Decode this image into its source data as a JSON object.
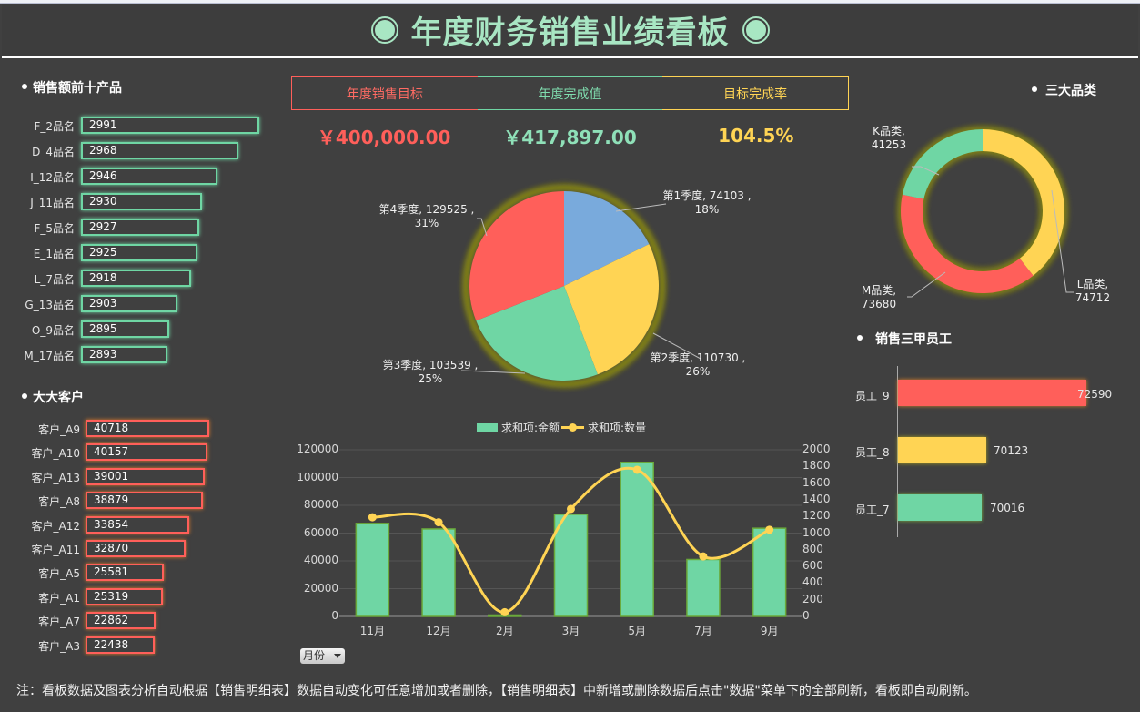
{
  "title": "年度财务销售业绩看板",
  "colors": {
    "green": "#6fd6a4",
    "red": "#ff5f5a",
    "yellow": "#ffd454",
    "blue": "#79aadc",
    "bg": "#404040",
    "title": "#a8e6c3"
  },
  "top_products": {
    "title": "销售额前十产品",
    "items": [
      {
        "label": "F_2品名",
        "value": 2991,
        "width": 196
      },
      {
        "label": "D_4品名",
        "value": 2968,
        "width": 173
      },
      {
        "label": "I_12品名",
        "value": 2946,
        "width": 150
      },
      {
        "label": "J_11品名",
        "value": 2930,
        "width": 133
      },
      {
        "label": "F_5品名",
        "value": 2927,
        "width": 130
      },
      {
        "label": "E_1品名",
        "value": 2925,
        "width": 128
      },
      {
        "label": "L_7品名",
        "value": 2918,
        "width": 121
      },
      {
        "label": "G_13品名",
        "value": 2903,
        "width": 106
      },
      {
        "label": "O_9品名",
        "value": 2895,
        "width": 97
      },
      {
        "label": "M_17品名",
        "value": 2893,
        "width": 95
      }
    ]
  },
  "top_customers": {
    "title": "大大客户",
    "items": [
      {
        "label": "客户_A9",
        "value": 40718,
        "width": 136
      },
      {
        "label": "客户_A10",
        "value": 40157,
        "width": 134
      },
      {
        "label": "客户_A13",
        "value": 39001,
        "width": 131
      },
      {
        "label": "客户_A8",
        "value": 38879,
        "width": 129
      },
      {
        "label": "客户_A12",
        "value": 33854,
        "width": 114
      },
      {
        "label": "客户_A11",
        "value": 32870,
        "width": 110
      },
      {
        "label": "客户_A5",
        "value": 25581,
        "width": 86
      },
      {
        "label": "客户_A1",
        "value": 25319,
        "width": 85
      },
      {
        "label": "客户_A7",
        "value": 22862,
        "width": 77
      },
      {
        "label": "客户_A3",
        "value": 22438,
        "width": 76
      }
    ]
  },
  "kpi": {
    "target_label": "年度销售目标",
    "actual_label": "年度完成值",
    "rate_label": "目标完成率",
    "target_value": "￥400,000.00",
    "actual_value": "￥417,897.00",
    "rate_value": "104.5%"
  },
  "quarter_pie": {
    "labels": [
      {
        "line1": "第1季度, 74103 ,",
        "line2": "18%"
      },
      {
        "line1": "第2季度, 110730 ,",
        "line2": "26%"
      },
      {
        "line1": "第3季度, 103539 ,",
        "line2": "25%"
      },
      {
        "line1": "第4季度, 129525 ,",
        "line2": "31%"
      }
    ]
  },
  "combo": {
    "legend_bar": "求和项:金额",
    "legend_line": "求和项:数量",
    "y_left": [
      "120000",
      "100000",
      "80000",
      "60000",
      "40000",
      "20000",
      "0"
    ],
    "y_right": [
      "2000",
      "1800",
      "1600",
      "1400",
      "1200",
      "1000",
      "800",
      "600",
      "400",
      "200",
      "0"
    ],
    "x": [
      "11月",
      "12月",
      "2月",
      "3月",
      "5月",
      "7月",
      "9月"
    ],
    "filter_label": "月份"
  },
  "categories": {
    "title": "三大品类",
    "items": [
      {
        "name": "K品类,",
        "value": "41253"
      },
      {
        "name": "L品类,",
        "value": "74712"
      },
      {
        "name": "M品类,",
        "value": "73680"
      }
    ]
  },
  "employees": {
    "title": "销售三甲员工",
    "items": [
      {
        "label": "员工_9",
        "value": "72590"
      },
      {
        "label": "员工_8",
        "value": "70123"
      },
      {
        "label": "员工_7",
        "value": "70016"
      }
    ]
  },
  "note": "注：看板数据及图表分析自动根据【销售明细表】数据自动变化可任意增加或者删除，【销售明细表】中新增或删除数据后点击\"数据\"菜单下的全部刷新，看板即自动刷新。",
  "chart_data": [
    {
      "type": "bar",
      "title": "销售额前十产品",
      "orientation": "horizontal",
      "categories": [
        "F_2品名",
        "D_4品名",
        "I_12品名",
        "J_11品名",
        "F_5品名",
        "E_1品名",
        "L_7品名",
        "G_13品名",
        "O_9品名",
        "M_17品名"
      ],
      "values": [
        2991,
        2968,
        2946,
        2930,
        2927,
        2925,
        2918,
        2903,
        2895,
        2893
      ]
    },
    {
      "type": "bar",
      "title": "大大客户",
      "orientation": "horizontal",
      "categories": [
        "客户_A9",
        "客户_A10",
        "客户_A13",
        "客户_A8",
        "客户_A12",
        "客户_A11",
        "客户_A5",
        "客户_A1",
        "客户_A7",
        "客户_A3"
      ],
      "values": [
        40718,
        40157,
        39001,
        38879,
        33854,
        32870,
        25581,
        25319,
        22862,
        22438
      ]
    },
    {
      "type": "pie",
      "title": "季度销售",
      "categories": [
        "第1季度",
        "第2季度",
        "第3季度",
        "第4季度"
      ],
      "values": [
        74103,
        110730,
        103539,
        129525
      ],
      "percentages": [
        18,
        26,
        25,
        31
      ]
    },
    {
      "type": "bar",
      "title": "月度金额与数量",
      "categories": [
        "11月",
        "12月",
        "2月",
        "3月",
        "5月",
        "7月",
        "9月"
      ],
      "series": [
        {
          "name": "求和项:金额",
          "type": "bar",
          "axis": "left",
          "values": [
            67000,
            63000,
            1000,
            73500,
            111000,
            41000,
            63500
          ]
        },
        {
          "name": "求和项:数量",
          "type": "line",
          "axis": "right",
          "values": [
            1190,
            1130,
            50,
            1290,
            1760,
            720,
            1040
          ]
        }
      ],
      "ylim_left": [
        0,
        120000
      ],
      "ylim_right": [
        0,
        2000
      ],
      "legend_position": "top",
      "grid": true
    },
    {
      "type": "pie",
      "subtype": "donut",
      "title": "三大品类",
      "categories": [
        "K品类",
        "L品类",
        "M品类"
      ],
      "values": [
        41253,
        74712,
        73680
      ]
    },
    {
      "type": "bar",
      "title": "销售三甲员工",
      "orientation": "horizontal",
      "categories": [
        "员工_9",
        "员工_8",
        "员工_7"
      ],
      "values": [
        72590,
        70123,
        70016
      ]
    }
  ]
}
